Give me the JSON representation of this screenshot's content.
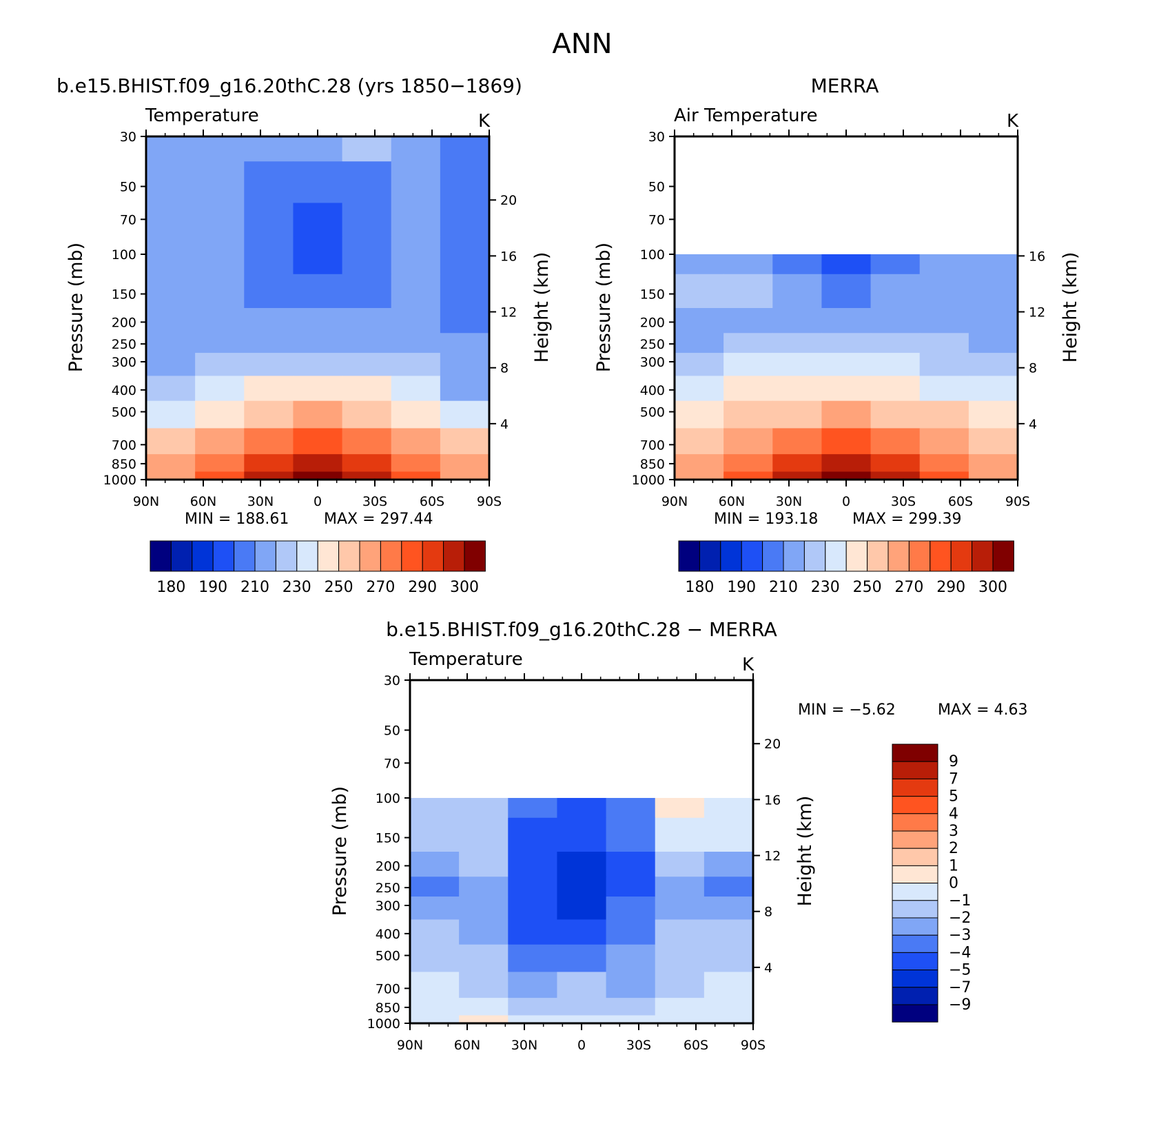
{
  "figure": {
    "title": "ANN"
  },
  "pressure_ticks": [
    30,
    50,
    70,
    100,
    150,
    200,
    250,
    300,
    400,
    500,
    700,
    850,
    1000
  ],
  "lat_ticks": [
    "90N",
    "60N",
    "30N",
    "0",
    "30S",
    "60S",
    "90S"
  ],
  "panels": [
    {
      "id": "model",
      "title": "b.e15.BHIST.f09_g16.20thC.28 (yrs 1850−1869)",
      "left_title": "Temperature",
      "units": "K",
      "ylabel": "Pressure (mb)",
      "ylabel_right": "Height (km)",
      "height_ticks": [
        20,
        16,
        12,
        8,
        4
      ],
      "min_label": "MIN = 188.61",
      "max_label": "MAX = 297.44"
    },
    {
      "id": "merra",
      "title": "MERRA",
      "left_title": "Air Temperature",
      "units": "K",
      "ylabel": "Pressure (mb)",
      "ylabel_right": "Height (km)",
      "height_ticks": [
        16,
        12,
        8,
        4
      ],
      "min_label": "MIN = 193.18",
      "max_label": "MAX = 299.39"
    },
    {
      "id": "diff",
      "title": "b.e15.BHIST.f09_g16.20thC.28 − MERRA",
      "left_title": "Temperature",
      "units": "K",
      "ylabel": "Pressure (mb)",
      "ylabel_right": "Height (km)",
      "height_ticks": [
        20,
        16,
        12,
        8,
        4
      ],
      "min_label": "MIN = −5.62",
      "max_label": "MAX = 4.63"
    }
  ],
  "colorbar_temp": {
    "colors": [
      "#00007f",
      "#0020b0",
      "#0034d8",
      "#1e50f5",
      "#4a7af5",
      "#80a6f6",
      "#b0c8f8",
      "#d8e8fc",
      "#ffe6d4",
      "#ffc8aa",
      "#ffa37a",
      "#ff7a48",
      "#ff5420",
      "#e43a10",
      "#b81e08",
      "#800000"
    ],
    "labels": [
      "180",
      "190",
      "210",
      "230",
      "250",
      "270",
      "290",
      "300"
    ]
  },
  "colorbar_diff": {
    "colors": [
      "#7f0000",
      "#b81e08",
      "#e43a10",
      "#ff5420",
      "#ff7a48",
      "#ffa37a",
      "#ffc8aa",
      "#ffe6d4",
      "#d8e8fc",
      "#b0c8f8",
      "#80a6f6",
      "#4a7af5",
      "#1e50f5",
      "#0034d8",
      "#0020b0",
      "#00007f"
    ],
    "labels": [
      "9",
      "7",
      "5",
      "4",
      "3",
      "2",
      "1",
      "0",
      "−1",
      "−2",
      "−3",
      "−4",
      "−5",
      "−7",
      "−9"
    ]
  },
  "chart_data": [
    {
      "type": "heatmap",
      "title": "b.e15.BHIST.f09_g16.20thC.28 (yrs 1850−1869)",
      "xlabel": "",
      "ylabel": "Pressure (mb)",
      "x": [
        "90N",
        "60N",
        "30N",
        "0",
        "30S",
        "60S",
        "90S"
      ],
      "y": [
        30,
        50,
        70,
        100,
        150,
        200,
        250,
        300,
        400,
        500,
        700,
        850,
        1000
      ],
      "ylim": [
        1000,
        30
      ],
      "log_y": true,
      "units": "K",
      "grid": false,
      "min": 188.61,
      "max": 297.44,
      "values_K": [
        [
          215,
          215,
          215,
          215,
          220,
          210,
          205
        ],
        [
          215,
          215,
          205,
          200,
          205,
          215,
          205
        ],
        [
          215,
          215,
          200,
          195,
          200,
          215,
          205
        ],
        [
          215,
          215,
          200,
          190,
          200,
          215,
          205
        ],
        [
          215,
          215,
          205,
          200,
          205,
          215,
          205
        ],
        [
          215,
          215,
          215,
          215,
          215,
          215,
          205
        ],
        [
          215,
          215,
          215,
          215,
          215,
          215,
          210
        ],
        [
          215,
          220,
          225,
          225,
          225,
          220,
          210
        ],
        [
          225,
          230,
          240,
          245,
          240,
          230,
          215
        ],
        [
          235,
          245,
          255,
          260,
          255,
          245,
          230
        ],
        [
          255,
          265,
          275,
          280,
          275,
          265,
          250
        ],
        [
          260,
          275,
          285,
          290,
          285,
          275,
          260
        ],
        [
          265,
          280,
          290,
          295,
          290,
          280,
          265
        ]
      ]
    },
    {
      "type": "heatmap",
      "title": "MERRA",
      "xlabel": "",
      "ylabel": "Pressure (mb)",
      "x": [
        "90N",
        "60N",
        "30N",
        "0",
        "30S",
        "60S",
        "90S"
      ],
      "y": [
        100,
        150,
        200,
        250,
        300,
        400,
        500,
        700,
        850,
        1000
      ],
      "ylim": [
        1000,
        30
      ],
      "log_y": true,
      "units": "K",
      "grid": false,
      "min": 193.18,
      "max": 299.39,
      "values_K": [
        [
          215,
          215,
          205,
          195,
          205,
          215,
          210
        ],
        [
          220,
          225,
          210,
          205,
          210,
          215,
          212
        ],
        [
          215,
          215,
          215,
          215,
          215,
          215,
          215
        ],
        [
          215,
          220,
          225,
          225,
          225,
          220,
          215
        ],
        [
          220,
          230,
          235,
          235,
          235,
          225,
          220
        ],
        [
          230,
          240,
          245,
          248,
          245,
          235,
          230
        ],
        [
          240,
          250,
          258,
          260,
          258,
          250,
          240
        ],
        [
          255,
          265,
          275,
          280,
          275,
          265,
          255
        ],
        [
          260,
          275,
          285,
          290,
          285,
          275,
          262
        ],
        [
          265,
          280,
          292,
          298,
          292,
          280,
          265
        ]
      ]
    },
    {
      "type": "heatmap",
      "title": "b.e15.BHIST.f09_g16.20thC.28 − MERRA",
      "xlabel": "",
      "ylabel": "Pressure (mb)",
      "x": [
        "90N",
        "60N",
        "30N",
        "0",
        "30S",
        "60S",
        "90S"
      ],
      "y": [
        100,
        150,
        200,
        250,
        300,
        400,
        500,
        700,
        850,
        1000
      ],
      "ylim": [
        1000,
        30
      ],
      "log_y": true,
      "units": "K",
      "grid": false,
      "min": -5.62,
      "max": 4.63,
      "values_K": [
        [
          -1.5,
          -1.5,
          -3.5,
          -4.5,
          -3.5,
          0.5,
          -0.5
        ],
        [
          -1.5,
          -1.5,
          -4.5,
          -5.0,
          -4.0,
          -0.5,
          -1.0
        ],
        [
          -2.5,
          -2.0,
          -4.5,
          -5.5,
          -4.5,
          -2.0,
          -3.0
        ],
        [
          -3.5,
          -2.5,
          -5.0,
          -5.5,
          -4.5,
          -2.5,
          -3.5
        ],
        [
          -2.5,
          -2.5,
          -5.0,
          -5.5,
          -4.0,
          -2.5,
          -2.5
        ],
        [
          -2.0,
          -3.0,
          -4.5,
          -4.5,
          -3.5,
          -2.0,
          -2.0
        ],
        [
          -1.5,
          -2.0,
          -3.5,
          -3.5,
          -3.0,
          -2.0,
          -1.5
        ],
        [
          -0.5,
          -1.5,
          -2.5,
          -1.5,
          -2.5,
          -1.5,
          -0.5
        ],
        [
          -0.5,
          -1.0,
          -1.5,
          -1.5,
          -1.5,
          -0.5,
          -0.5
        ],
        [
          -0.5,
          0.5,
          -0.5,
          -0.5,
          -0.5,
          -0.5,
          -0.5
        ]
      ]
    }
  ]
}
